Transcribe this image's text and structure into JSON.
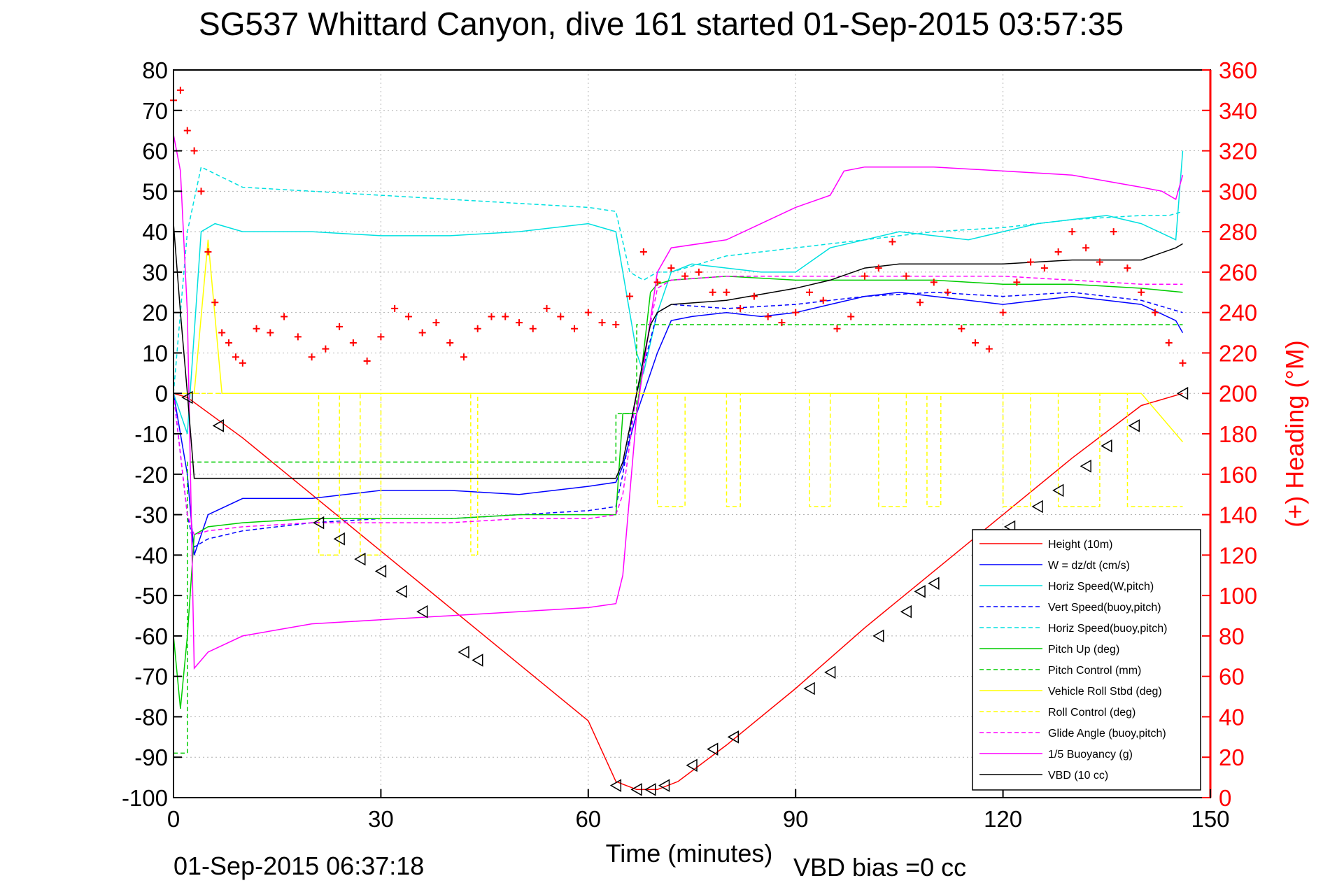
{
  "chart_data": {
    "type": "line",
    "title": "SG537 Whittard Canyon, dive 161 started 01-Sep-2015 03:57:35",
    "xlabel": "Time (minutes)",
    "ylabel": "",
    "ylabel_right": "(+) Heading (°M)",
    "xlim": [
      0,
      150
    ],
    "ylim": [
      -100,
      80
    ],
    "ylim_right": [
      0,
      360
    ],
    "x_ticks": [
      "0",
      "30",
      "60",
      "90",
      "120",
      "150"
    ],
    "y_ticks": [
      "80",
      "70",
      "60",
      "50",
      "40",
      "30",
      "20",
      "10",
      "0",
      "-10",
      "-20",
      "-30",
      "-40",
      "-50",
      "-60",
      "-70",
      "-80",
      "-90",
      "-100"
    ],
    "y_ticks_right": [
      "360",
      "340",
      "320",
      "300",
      "280",
      "260",
      "240",
      "220",
      "200",
      "180",
      "160",
      "140",
      "120",
      "100",
      "80",
      "60",
      "40",
      "20",
      "0"
    ],
    "grid": true,
    "legend_position": "bottom-right",
    "footer_left": "01-Sep-2015 06:37:18",
    "footer_right": "VBD bias =0 cc",
    "series": [
      {
        "name": "Height (10m)",
        "color": "#ff0000",
        "style": "solid",
        "axis": "left",
        "x": [
          0,
          2,
          10,
          20,
          30,
          40,
          50,
          60,
          64,
          67,
          70,
          73,
          80,
          90,
          100,
          110,
          120,
          130,
          140,
          146
        ],
        "y": [
          0,
          -1,
          -11,
          -25,
          -39,
          -53,
          -67,
          -81,
          -96,
          -98,
          -98,
          -96,
          -87,
          -73,
          -58,
          -44,
          -30,
          -16,
          -3,
          0
        ]
      },
      {
        "name": "W = dz/dt (cm/s)",
        "color": "#0000ff",
        "style": "solid",
        "axis": "left",
        "x": [
          0,
          2,
          3,
          5,
          10,
          20,
          30,
          40,
          50,
          60,
          64,
          65,
          67,
          70,
          72,
          75,
          80,
          85,
          90,
          95,
          100,
          105,
          110,
          115,
          120,
          125,
          130,
          135,
          140,
          145,
          146
        ],
        "y": [
          0,
          -20,
          -40,
          -30,
          -26,
          -26,
          -24,
          -24,
          -25,
          -23,
          -22,
          -18,
          -5,
          10,
          18,
          19,
          20,
          19,
          20,
          22,
          24,
          25,
          24,
          23,
          22,
          23,
          24,
          23,
          22,
          18,
          15
        ]
      },
      {
        "name": "Horiz Speed(W,pitch)",
        "color": "#00e0e0",
        "style": "solid",
        "axis": "left",
        "x": [
          0,
          2,
          4,
          6,
          10,
          20,
          30,
          40,
          50,
          60,
          64,
          65,
          67,
          68,
          70,
          72,
          75,
          80,
          85,
          90,
          95,
          100,
          105,
          110,
          115,
          120,
          125,
          130,
          135,
          140,
          145,
          146
        ],
        "y": [
          0,
          -10,
          40,
          42,
          40,
          40,
          39,
          39,
          40,
          42,
          40,
          30,
          10,
          5,
          20,
          30,
          32,
          31,
          30,
          30,
          36,
          38,
          40,
          39,
          38,
          40,
          42,
          43,
          44,
          42,
          38,
          60
        ]
      },
      {
        "name": "Vert Speed(buoy,pitch)",
        "color": "#0000ff",
        "style": "dashed",
        "axis": "left",
        "x": [
          0,
          2,
          3,
          5,
          10,
          20,
          30,
          40,
          50,
          60,
          64,
          65,
          67,
          70,
          72,
          80,
          90,
          100,
          110,
          120,
          130,
          140,
          146
        ],
        "y": [
          0,
          -30,
          -38,
          -36,
          -34,
          -32,
          -31,
          -31,
          -30,
          -29,
          -28,
          -20,
          0,
          20,
          22,
          21,
          22,
          24,
          25,
          24,
          25,
          23,
          20
        ]
      },
      {
        "name": "Horiz Speed(buoy,pitch)",
        "color": "#00e0e0",
        "style": "dashed",
        "axis": "left",
        "x": [
          0,
          2,
          4,
          10,
          20,
          30,
          40,
          50,
          60,
          64,
          66,
          68,
          70,
          72,
          80,
          90,
          100,
          110,
          120,
          130,
          140,
          144,
          146
        ],
        "y": [
          0,
          40,
          56,
          51,
          50,
          49,
          48,
          47,
          46,
          45,
          30,
          28,
          30,
          30,
          34,
          36,
          38,
          40,
          41,
          43,
          44,
          44,
          45
        ]
      },
      {
        "name": "Pitch Up (deg)",
        "color": "#00cc00",
        "style": "solid",
        "axis": "left",
        "x": [
          0,
          1,
          2,
          3,
          5,
          10,
          20,
          30,
          40,
          50,
          60,
          64,
          65,
          67,
          69,
          70,
          72,
          80,
          90,
          100,
          110,
          120,
          130,
          140,
          146
        ],
        "y": [
          -60,
          -78,
          -60,
          -35,
          -33,
          -32,
          -31,
          -31,
          -31,
          -30,
          -30,
          -30,
          -5,
          -5,
          25,
          27,
          28,
          29,
          28,
          28,
          28,
          27,
          27,
          26,
          25
        ]
      },
      {
        "name": "Pitch Control (mm)",
        "color": "#00cc00",
        "style": "dashed",
        "axis": "left",
        "x": [
          0,
          1,
          2,
          2.01,
          3,
          64,
          64.01,
          67,
          67.01,
          146
        ],
        "y": [
          -89,
          -89,
          -89,
          -17,
          -17,
          -17,
          -5,
          -5,
          17,
          17
        ]
      },
      {
        "name": "Vehicle Roll Stbd (deg)",
        "color": "#ffff00",
        "style": "solid",
        "axis": "left",
        "x": [
          0,
          3,
          5,
          7,
          10,
          20,
          30,
          40,
          50,
          60,
          65,
          70,
          75,
          80,
          90,
          100,
          110,
          120,
          130,
          140,
          146
        ],
        "y": [
          0,
          0,
          38,
          0,
          0,
          0,
          0,
          0,
          0,
          0,
          0,
          0,
          0,
          0,
          0,
          0,
          0,
          0,
          0,
          0,
          -12
        ]
      },
      {
        "name": "Roll Control (deg)",
        "color": "#ffff00",
        "style": "dashed",
        "axis": "left",
        "x": [
          0,
          21,
          21.01,
          24,
          24.01,
          27,
          27.01,
          30,
          30.01,
          43,
          43.01,
          44,
          44.01,
          64,
          64.01,
          70,
          70.01,
          74,
          74.01,
          80,
          80.01,
          82,
          82.01,
          92,
          92.01,
          95,
          95.01,
          102,
          102.01,
          106,
          106.01,
          109,
          109.01,
          111,
          111.01,
          120,
          120.01,
          124,
          124.01,
          128,
          128.01,
          134,
          134.01,
          138,
          138.01,
          146
        ],
        "y": [
          0,
          0,
          -40,
          -40,
          0,
          0,
          -40,
          -40,
          0,
          0,
          -40,
          -40,
          0,
          0,
          0,
          0,
          -28,
          -28,
          0,
          0,
          -28,
          -28,
          0,
          0,
          -28,
          -28,
          0,
          0,
          -28,
          -28,
          0,
          0,
          -28,
          -28,
          0,
          0,
          -28,
          -28,
          0,
          0,
          -28,
          -28,
          0,
          0,
          -28,
          -28
        ]
      },
      {
        "name": "Glide Angle (buoy,pitch)",
        "color": "#ff00ff",
        "style": "dashed",
        "axis": "left",
        "x": [
          0,
          2,
          3,
          5,
          10,
          20,
          30,
          40,
          50,
          60,
          64,
          65,
          67,
          70,
          72,
          80,
          90,
          100,
          110,
          120,
          130,
          140,
          146
        ],
        "y": [
          0,
          -30,
          -35,
          -34,
          -33,
          -32,
          -32,
          -32,
          -31,
          -31,
          -30,
          -25,
          0,
          26,
          28,
          29,
          29,
          29,
          29,
          29,
          28,
          27,
          27
        ]
      },
      {
        "name": "1/5 Buoyancy (g)",
        "color": "#ff00ff",
        "style": "solid",
        "axis": "left",
        "x": [
          0,
          1,
          2,
          3,
          5,
          10,
          20,
          30,
          40,
          50,
          60,
          64,
          65,
          67,
          70,
          72,
          80,
          85,
          90,
          95,
          97,
          100,
          110,
          120,
          130,
          140,
          143,
          145,
          146
        ],
        "y": [
          64,
          55,
          20,
          -68,
          -64,
          -60,
          -57,
          -56,
          -55,
          -54,
          -53,
          -52,
          -45,
          -5,
          30,
          36,
          38,
          42,
          46,
          49,
          55,
          56,
          56,
          55,
          54,
          51,
          50,
          48,
          54
        ]
      },
      {
        "name": "VBD (10 cc)",
        "color": "#000000",
        "style": "solid",
        "axis": "left",
        "x": [
          0,
          1,
          2,
          3,
          4,
          64,
          65,
          67,
          69,
          70,
          72,
          80,
          90,
          95,
          100,
          105,
          110,
          120,
          130,
          140,
          145,
          146
        ],
        "y": [
          42,
          20,
          0,
          -21,
          -21,
          -21,
          -17,
          0,
          17,
          20,
          22,
          23,
          26,
          28,
          31,
          32,
          32,
          32,
          33,
          33,
          36,
          37
        ]
      },
      {
        "name": "(+) Heading",
        "color": "#ff0000",
        "style": "plus",
        "axis": "right",
        "x": [
          0,
          1,
          2,
          3,
          4,
          5,
          6,
          7,
          8,
          9,
          10,
          12,
          14,
          16,
          18,
          20,
          22,
          24,
          26,
          28,
          30,
          32,
          34,
          36,
          38,
          40,
          42,
          44,
          46,
          48,
          50,
          52,
          54,
          56,
          58,
          60,
          62,
          64,
          66,
          68,
          70,
          72,
          74,
          76,
          78,
          80,
          82,
          84,
          86,
          88,
          90,
          92,
          94,
          96,
          98,
          100,
          102,
          104,
          106,
          108,
          110,
          112,
          114,
          116,
          118,
          120,
          122,
          124,
          126,
          128,
          130,
          132,
          134,
          136,
          138,
          140,
          142,
          144,
          146
        ],
        "y": [
          345,
          350,
          330,
          320,
          300,
          270,
          245,
          230,
          225,
          218,
          215,
          232,
          230,
          238,
          228,
          218,
          222,
          233,
          225,
          216,
          228,
          242,
          238,
          230,
          235,
          225,
          218,
          232,
          238,
          238,
          235,
          232,
          242,
          238,
          232,
          240,
          235,
          234,
          248,
          270,
          255,
          262,
          258,
          260,
          250,
          250,
          242,
          248,
          238,
          235,
          240,
          250,
          246,
          232,
          238,
          258,
          262,
          275,
          258,
          245,
          255,
          250,
          232,
          225,
          222,
          240,
          255,
          265,
          262,
          270,
          280,
          272,
          265,
          280,
          262,
          250,
          240,
          225,
          215
        ]
      }
    ],
    "markers": {
      "name": "Height markers",
      "color": "#000000",
      "shape": "triangle-left",
      "x": [
        2,
        6.5,
        21,
        24,
        27,
        30,
        33,
        36,
        42,
        44,
        64,
        67,
        69,
        71,
        75,
        78,
        81,
        92,
        95,
        102,
        106,
        108,
        110,
        121,
        125,
        128,
        132,
        135,
        139,
        146
      ],
      "y": [
        -1,
        -8,
        -32,
        -36,
        -41,
        -44,
        -49,
        -54,
        -64,
        -66,
        -97,
        -98,
        -98,
        -97,
        -92,
        -88,
        -85,
        -73,
        -69,
        -60,
        -54,
        -49,
        -47,
        -33,
        -28,
        -24,
        -18,
        -13,
        -8,
        0
      ]
    }
  }
}
